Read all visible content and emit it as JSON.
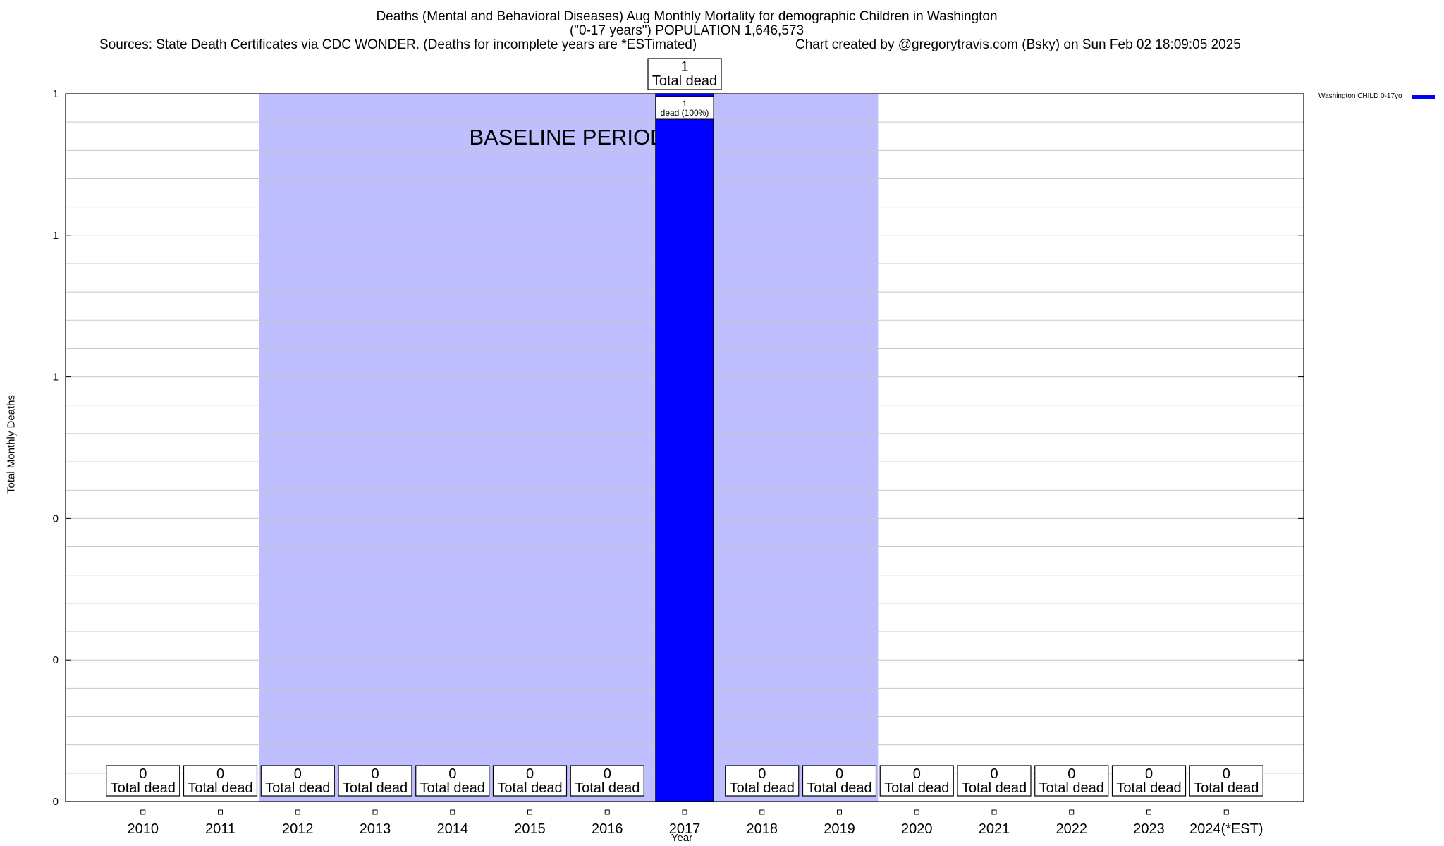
{
  "chart_data": {
    "type": "bar",
    "title": "Deaths (Mental and Behavioral Diseases) Aug Monthly Mortality for demographic Children in Washington",
    "title_line2": "(\"0-17 years\") POPULATION 1,646,573",
    "subtitle_left": "Sources: State Death Certificates via CDC WONDER. (Deaths for incomplete years are *ESTimated)",
    "subtitle_right": "Chart created by @gregorytravis.com (Bsky) on Sun Feb 02 18:09:05 2025",
    "xlabel": "Year",
    "ylabel": "Total Monthly Deaths",
    "categories": [
      "2010",
      "2011",
      "2012",
      "2013",
      "2014",
      "2015",
      "2016",
      "2017",
      "2018",
      "2019",
      "2020",
      "2021",
      "2022",
      "2023",
      "2024(*EST)"
    ],
    "series": [
      {
        "name": "Washington CHILD 0-17yo",
        "color": "#0000ff",
        "values": [
          0,
          0,
          0,
          0,
          0,
          0,
          0,
          1,
          0,
          0,
          0,
          0,
          0,
          0,
          0
        ],
        "total_labels": [
          "0",
          "0",
          "0",
          "0",
          "0",
          "0",
          "0",
          "1",
          "0",
          "0",
          "0",
          "0",
          "0",
          "0",
          "0"
        ]
      }
    ],
    "total_label_suffix": "Total dead",
    "inner_label": {
      "category": "2017",
      "line1": "1",
      "line2": "dead (100%)"
    },
    "ylim": [
      0,
      1
    ],
    "ytick_labels": [
      "0",
      "0",
      "0",
      "1",
      "1",
      "1"
    ],
    "grid": true,
    "baseline_period": {
      "start": "2012",
      "end": "2019",
      "label": "BASELINE PERIOD",
      "color": "#bfbfff"
    },
    "legend_position": "top-right"
  }
}
